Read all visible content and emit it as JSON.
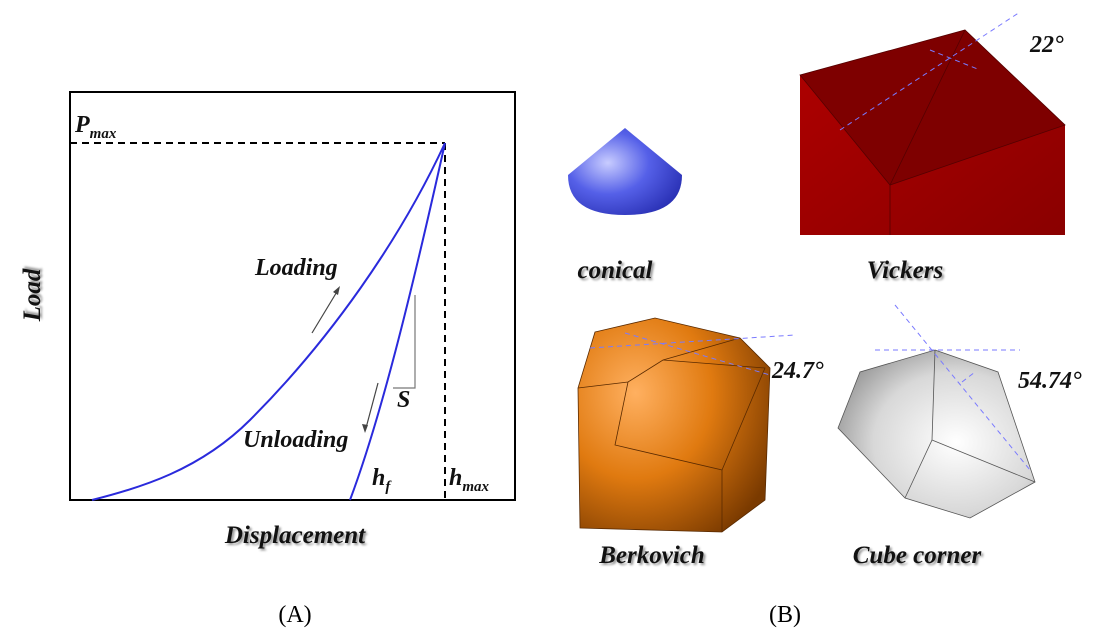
{
  "panel_a": {
    "y_label": "Load",
    "x_label": "Displacement",
    "p_max": {
      "symbol": "P",
      "subscript": "max"
    },
    "loading": "Loading",
    "unloading": "Unloading",
    "stiffness": "S",
    "h_f": {
      "symbol": "h",
      "subscript": "f"
    },
    "h_max": {
      "symbol": "h",
      "subscript": "max"
    },
    "caption": "(A)"
  },
  "panel_b": {
    "indenters": [
      {
        "label": "conical"
      },
      {
        "label": "Vickers",
        "angle": "22°"
      },
      {
        "label": "Berkovich",
        "angle": "24.7°"
      },
      {
        "label": "Cube corner",
        "angle": "54.74°"
      }
    ],
    "caption": "(B)"
  }
}
